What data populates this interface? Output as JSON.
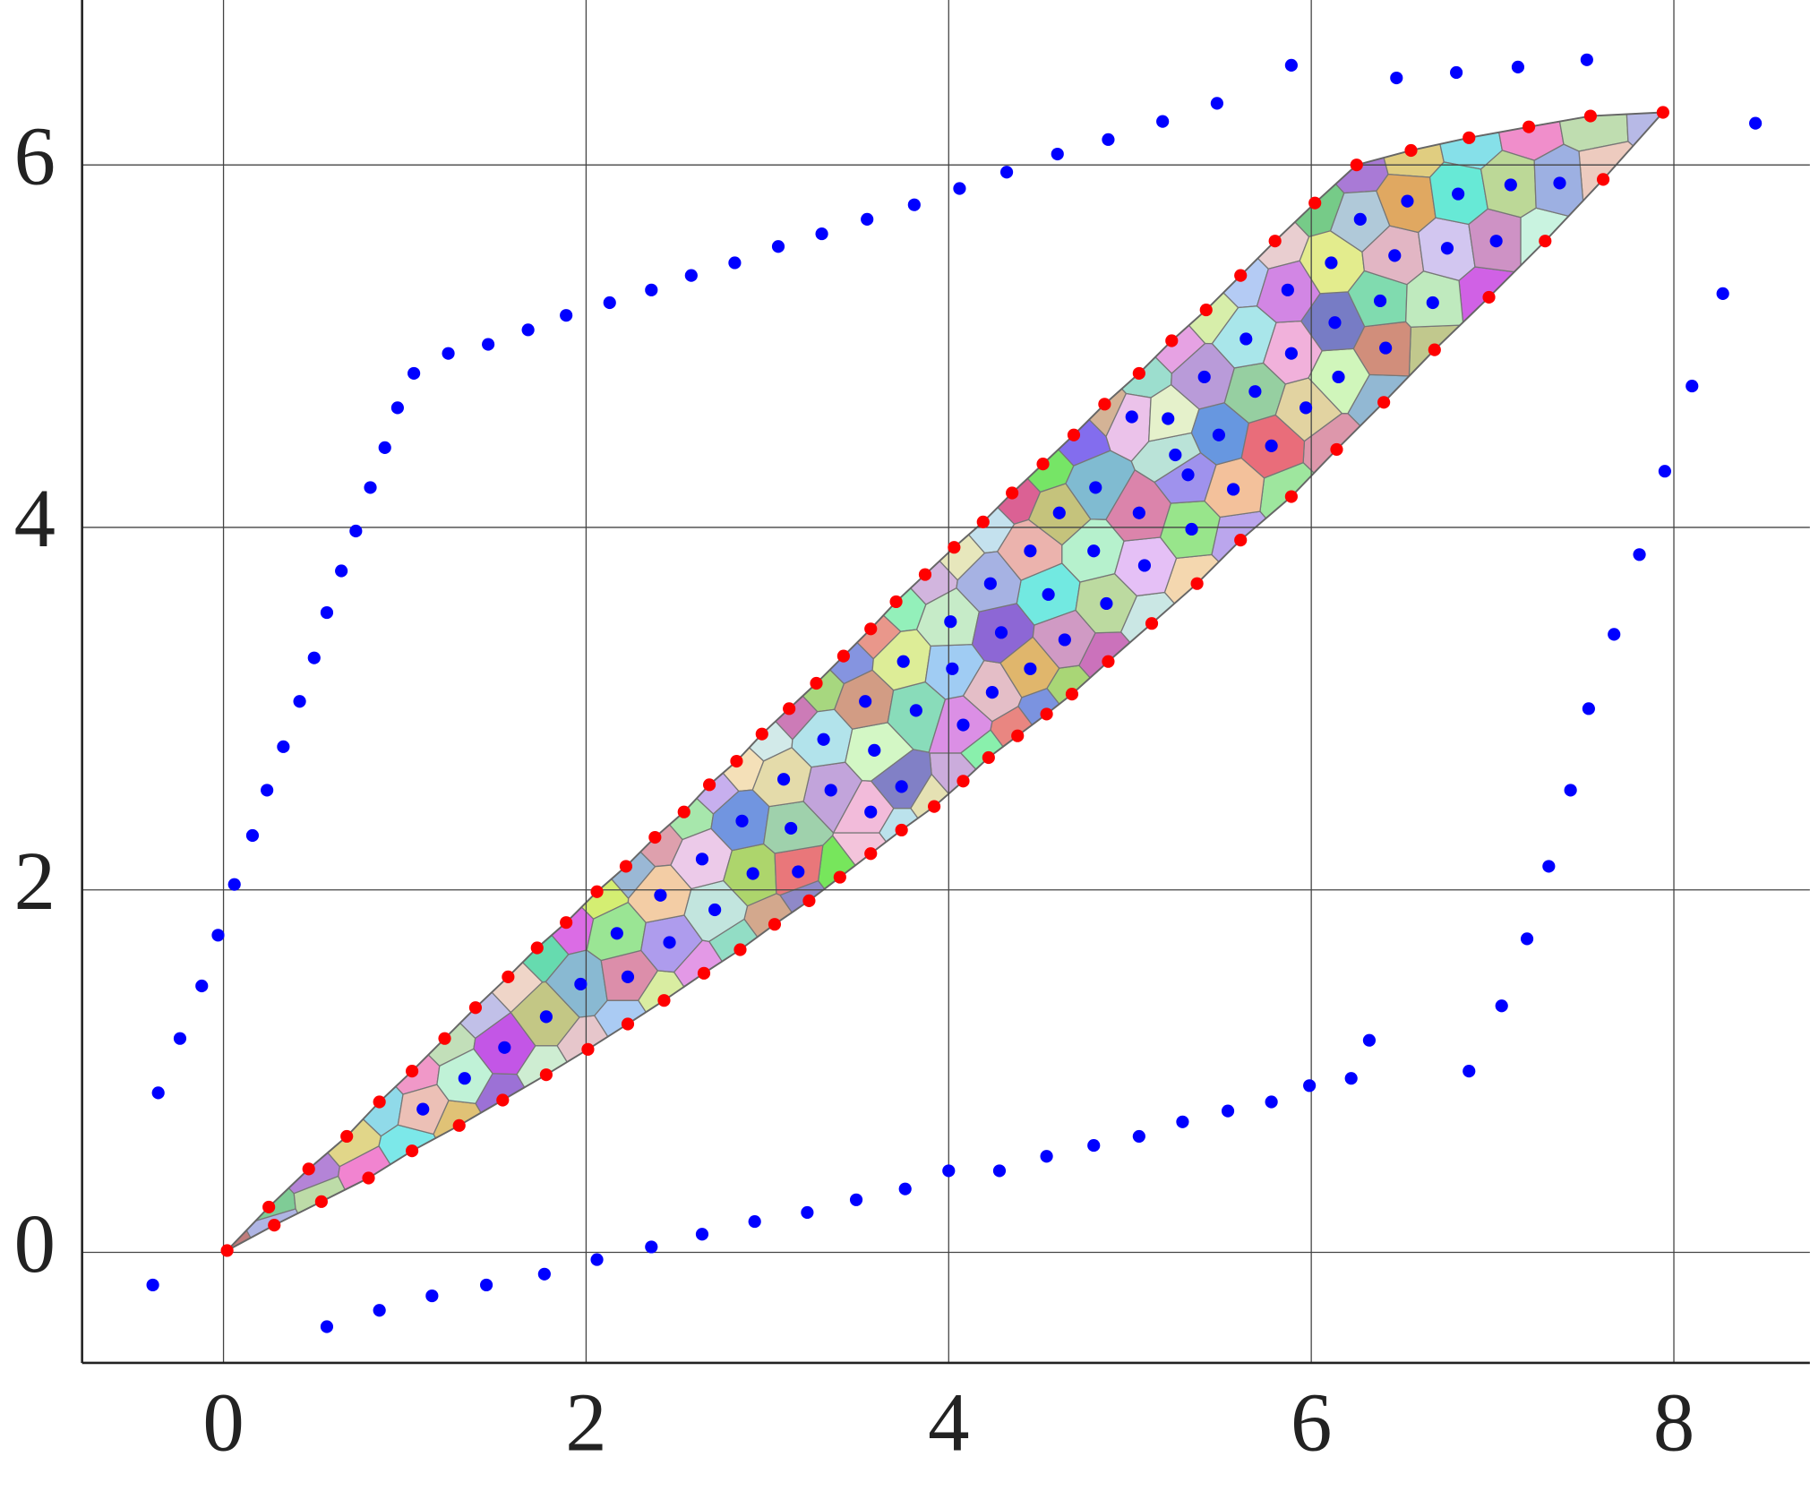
{
  "chart_data": {
    "type": "scatter",
    "xlim": [
      -0.78,
      8.75
    ],
    "ylim": [
      -0.61,
      6.91
    ],
    "xticks": [
      0,
      2,
      4,
      6,
      8
    ],
    "yticks": [
      0,
      2,
      4,
      6
    ],
    "grid": true,
    "series": [
      {
        "color": "#0000ff",
        "x": [
          -0.36,
          -0.24,
          -0.12,
          -0.03,
          0.06,
          0.16,
          0.24,
          0.33,
          0.42,
          0.5,
          0.57,
          0.65,
          0.73,
          0.81,
          0.89,
          0.96,
          1.05,
          1.24,
          1.46,
          1.68,
          1.89,
          2.13,
          2.36,
          2.58,
          2.82,
          3.06,
          3.3,
          3.55,
          3.81,
          4.06,
          4.32,
          4.6,
          4.88,
          5.18,
          5.48,
          5.89,
          6.47,
          6.8,
          7.14,
          7.52,
          8.45,
          -0.39,
          0.57,
          0.86,
          1.15,
          1.45,
          1.77,
          2.06,
          2.36,
          2.64,
          2.93,
          3.22,
          3.49,
          3.76,
          4.0,
          4.28,
          4.54,
          4.8,
          5.05,
          5.29,
          5.54,
          5.78,
          5.99,
          6.22,
          6.32,
          6.87,
          7.05,
          7.19,
          7.31,
          7.43,
          7.53,
          7.67,
          7.81,
          7.95,
          8.1,
          8.27
        ],
        "y": [
          0.88,
          1.18,
          1.47,
          1.75,
          2.03,
          2.3,
          2.55,
          2.79,
          3.04,
          3.28,
          3.53,
          3.76,
          3.98,
          4.22,
          4.44,
          4.66,
          4.85,
          4.96,
          5.01,
          5.09,
          5.17,
          5.24,
          5.31,
          5.39,
          5.46,
          5.55,
          5.62,
          5.7,
          5.78,
          5.87,
          5.96,
          6.06,
          6.14,
          6.24,
          6.34,
          6.55,
          6.48,
          6.51,
          6.54,
          6.58,
          6.23,
          -0.18,
          -0.41,
          -0.32,
          -0.24,
          -0.18,
          -0.12,
          -0.04,
          0.03,
          0.1,
          0.17,
          0.22,
          0.29,
          0.35,
          0.45,
          0.45,
          0.53,
          0.59,
          0.64,
          0.72,
          0.78,
          0.83,
          0.92,
          0.96,
          1.17,
          1.0,
          1.36,
          1.73,
          2.13,
          2.55,
          3.0,
          3.41,
          3.85,
          4.31,
          4.78,
          5.29
        ]
      },
      {
        "color": "#ff0000",
        "x": [
          0.02,
          0.25,
          0.47,
          0.68,
          0.86,
          1.04,
          1.22,
          1.39,
          1.57,
          1.73,
          1.89,
          2.06,
          2.22,
          2.38,
          2.54,
          2.68,
          2.83,
          2.97,
          3.12,
          3.27,
          3.42,
          3.57,
          3.71,
          3.87,
          4.03,
          4.19,
          4.35,
          4.52,
          4.69,
          4.86,
          5.05,
          5.23,
          5.42,
          5.61,
          5.8,
          6.02,
          6.25,
          6.55,
          6.87,
          7.2,
          7.54,
          7.94,
          7.61,
          7.29,
          6.98,
          6.68,
          6.4,
          6.14,
          5.89,
          5.61,
          5.37,
          5.12,
          4.88,
          4.68,
          4.54,
          4.38,
          4.22,
          4.08,
          3.92,
          3.74,
          3.57,
          3.4,
          3.23,
          3.04,
          2.85,
          2.65,
          2.43,
          2.23,
          2.01,
          1.78,
          1.54,
          1.3,
          1.04,
          0.8,
          0.54,
          0.28
        ],
        "y": [
          0.01,
          0.25,
          0.46,
          0.64,
          0.83,
          1.0,
          1.18,
          1.35,
          1.52,
          1.68,
          1.82,
          1.99,
          2.13,
          2.29,
          2.43,
          2.58,
          2.71,
          2.86,
          3.0,
          3.14,
          3.29,
          3.44,
          3.59,
          3.74,
          3.89,
          4.03,
          4.19,
          4.35,
          4.51,
          4.68,
          4.85,
          5.03,
          5.2,
          5.39,
          5.58,
          5.79,
          6.0,
          6.08,
          6.15,
          6.21,
          6.27,
          6.29,
          5.92,
          5.58,
          5.27,
          4.98,
          4.69,
          4.43,
          4.17,
          3.93,
          3.69,
          3.47,
          3.26,
          3.08,
          2.97,
          2.85,
          2.73,
          2.6,
          2.46,
          2.33,
          2.2,
          2.07,
          1.94,
          1.81,
          1.67,
          1.54,
          1.39,
          1.26,
          1.12,
          0.98,
          0.84,
          0.7,
          0.56,
          0.41,
          0.28,
          0.15
        ]
      },
      {
        "color": "#0000ff",
        "x": [
          1.1,
          1.33,
          1.55,
          1.78,
          1.97,
          2.23,
          2.17,
          2.46,
          2.41,
          2.71,
          2.64,
          2.92,
          2.86,
          3.17,
          3.13,
          3.35,
          3.09,
          3.31,
          3.57,
          3.59,
          3.74,
          3.54,
          3.82,
          4.08,
          3.75,
          4.02,
          4.24,
          4.01,
          4.29,
          4.45,
          4.55,
          4.64,
          4.87,
          4.23,
          4.45,
          4.8,
          5.08,
          4.61,
          4.81,
          5.05,
          5.34,
          5.32,
          5.57,
          5.25,
          5.01,
          5.21,
          5.49,
          5.78,
          5.69,
          5.41,
          5.97,
          5.64,
          5.89,
          6.15,
          6.13,
          6.41,
          6.38,
          5.87,
          6.11,
          6.27,
          6.46,
          6.67,
          6.75,
          6.53,
          6.81,
          7.02,
          7.1,
          7.37
        ],
        "y": [
          0.79,
          0.96,
          1.13,
          1.3,
          1.48,
          1.52,
          1.76,
          1.71,
          1.97,
          1.89,
          2.17,
          2.09,
          2.38,
          2.1,
          2.34,
          2.55,
          2.61,
          2.83,
          2.43,
          2.77,
          2.57,
          3.04,
          2.99,
          2.91,
          3.26,
          3.22,
          3.09,
          3.48,
          3.42,
          3.22,
          3.63,
          3.38,
          3.58,
          3.69,
          3.87,
          3.87,
          3.79,
          4.08,
          4.22,
          4.08,
          3.99,
          4.29,
          4.21,
          4.4,
          4.61,
          4.6,
          4.51,
          4.45,
          4.75,
          4.83,
          4.66,
          5.04,
          4.96,
          4.83,
          5.13,
          4.99,
          5.25,
          5.31,
          5.46,
          5.7,
          5.5,
          5.24,
          5.54,
          5.8,
          5.84,
          5.58,
          5.89,
          5.9
        ]
      }
    ]
  }
}
